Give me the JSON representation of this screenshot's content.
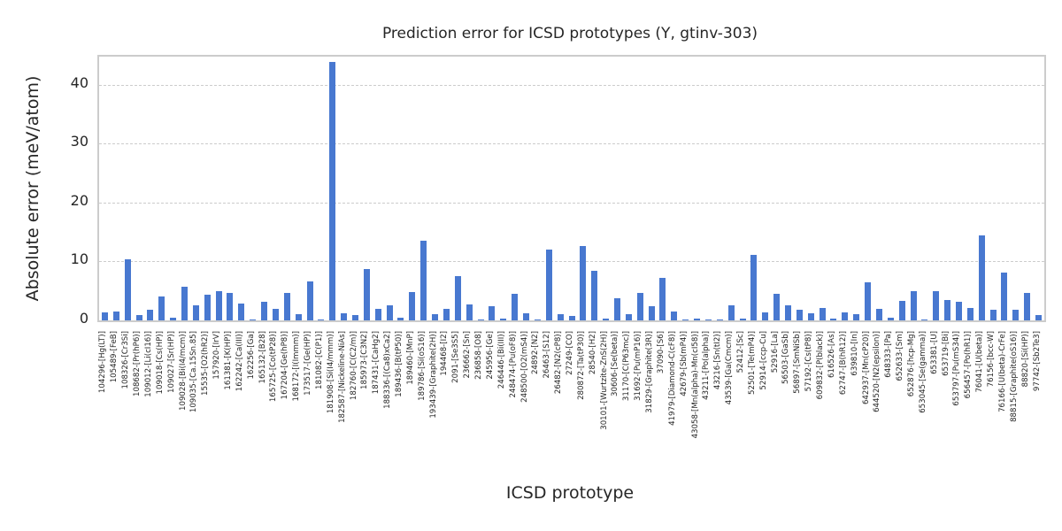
{
  "chart_data": {
    "type": "bar",
    "title": "Prediction error for ICSD prototypes (Y, gtinv-303)",
    "xlabel": "ICSD prototype",
    "ylabel": "Absolute error (meV/atom)",
    "ylim": [
      0,
      44.8
    ],
    "yticks": [
      0,
      10,
      20,
      30,
      40
    ],
    "grid": "horizontal-dashed",
    "legend": "none",
    "bar_color": "#4878d0",
    "gridline_color": "#cccccc",
    "spine_color": "#cccccc",
    "text_color": "#262626",
    "categories": [
      "104296-[Hg(LT)]",
      "105489-[FeB]",
      "108326-[Cr3Si]",
      "108682-[Pr(hP6)]",
      "109012-[Li(cI16)]",
      "109018-[Cs(HP)]",
      "109027-[Sr(HP)]",
      "109028-[Bi(I4/mcm)]",
      "109035-[Ca.15Sn.85]",
      "15535-[O2(hR2)]",
      "157920-[IrV]",
      "161381-[K(HP)]",
      "162242-[Ca(III)]",
      "162256-[Ga]",
      "165132-[B28]",
      "165725-[Co(tP28)]",
      "167204-[Ge(hP8)]",
      "168172-[I(Immm)]",
      "173517-[Ge(HP)]",
      "181082-[C(P1)]",
      "181908-[Si(I4/mmm)]",
      "182587-[Nickeline-NiAs]",
      "182760-[C(C2/m)]",
      "185973-[C3N2]",
      "187431-[CaHg2]",
      "188336-[(Ca8)xCa2]",
      "189436-[B(tP50)]",
      "189460-[MnP]",
      "189786-[Si(oS16)]",
      "193439-[Graphite(2H)]",
      "194468-[I2]",
      "2091-[Se3S5]",
      "236662-[Sn]",
      "236858-[O8]",
      "245956-[Ge]",
      "246446-[Bi(III)]",
      "248474-[Pu(oF8)]",
      "248500-[O2(mS4)]",
      "24892-[N2]",
      "26463-[S12]",
      "26482-[N2(cP8)]",
      "27249-[CO]",
      "280872-[Ta(tP30)]",
      "28540-[H2]",
      "30101-[Wurtzite-ZnS(2H)]",
      "30606-[Se(beta)]",
      "31170-[C(P63mc)]",
      "31692-[Pu(mP16)]",
      "31829-[Graphite(3R)]",
      "37090-[S6]",
      "41979-[Diamond-C(cF8)]",
      "42679-[Sb(mP4)]",
      "43058-[Mn(alpha)-Mn(cI58)]",
      "43211-[Po(alpha)]",
      "43216-[Sn(tI2)]",
      "43539-[Ga(Cmcm)]",
      "52412-[Sc]",
      "52501-[Te(mP4)]",
      "52914-[ccp-Cu]",
      "52916-[La]",
      "56503-[GaSb]",
      "56897-[SmNiSb]",
      "57192-[Cs(tP8)]",
      "609832-[P(black)]",
      "616526-[As]",
      "62747-[B(hR12)]",
      "639810-[In]",
      "642937-[Mn(cP20)]",
      "644520-[N2(epsilon)]",
      "648333-[Pa]",
      "652633-[Sm]",
      "652876-[hcp-Mg]",
      "653045-[Se(gamma)]",
      "653381-[U]",
      "653719-[Bi]",
      "653797-[Pu(mS34)]",
      "656457-[Po(hR1)]",
      "76041-[U(beta)]",
      "76156-[bcc-W]",
      "76166-[U(beta)-CrFe]",
      "88815-[Graphite(oS16)]",
      "88820-[Si(HP)]",
      "97742-[Sb2Te3]"
    ],
    "values": [
      1.35,
      1.5,
      10.4,
      0.9,
      1.85,
      4.0,
      0.5,
      5.75,
      2.5,
      4.4,
      4.9,
      4.6,
      2.9,
      0.1,
      3.1,
      2.0,
      4.65,
      1.0,
      6.65,
      0.1,
      43.9,
      1.2,
      0.9,
      8.75,
      2.0,
      2.6,
      0.4,
      4.85,
      13.5,
      1.0,
      2.0,
      7.55,
      2.65,
      0.1,
      2.35,
      0.3,
      4.5,
      1.15,
      0.2,
      12.1,
      1.05,
      0.8,
      12.7,
      8.4,
      0.35,
      3.8,
      1.1,
      4.7,
      2.35,
      7.25,
      1.55,
      0.1,
      0.3,
      0.1,
      0.1,
      2.55,
      0.25,
      11.2,
      1.4,
      4.5,
      2.5,
      1.85,
      1.15,
      2.05,
      0.35,
      1.3,
      1.05,
      6.4,
      2.0,
      0.5,
      3.3,
      5.0,
      0.1,
      5.0,
      3.5,
      3.1,
      2.1,
      14.4,
      1.85,
      8.15,
      1.85,
      4.65,
      0.85
    ]
  }
}
